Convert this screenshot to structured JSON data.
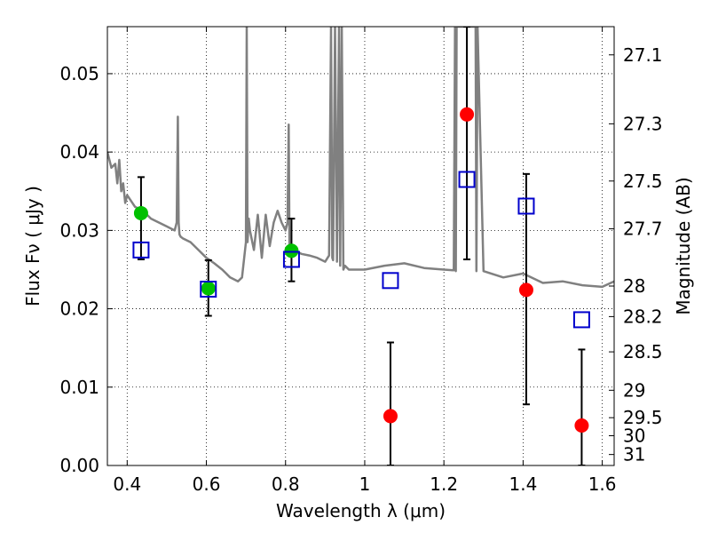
{
  "chart_data": {
    "type": "scatter",
    "xlabel": "Wavelength  λ (μm)",
    "ylabel": "Flux  Fν  ( μJy )",
    "y2label": "Magnitude (AB)",
    "xlim": [
      0.35,
      1.63
    ],
    "ylim": [
      0.0,
      0.056
    ],
    "grid": true,
    "x_ticks": [
      0.4,
      0.6,
      0.8,
      1.0,
      1.2,
      1.4,
      1.6
    ],
    "x_tick_labels": [
      "0.4",
      "0.6",
      "0.8",
      "1",
      "1.2",
      "1.4",
      "1.6"
    ],
    "y_ticks": [
      0.0,
      0.01,
      0.02,
      0.03,
      0.04,
      0.05
    ],
    "y_tick_labels": [
      "0.00",
      "0.01",
      "0.02",
      "0.03",
      "0.04",
      "0.05"
    ],
    "y2_ticks": [
      {
        "label": "27.1",
        "flux": 0.0524
      },
      {
        "label": "27.3",
        "flux": 0.0436
      },
      {
        "label": "27.5",
        "flux": 0.0363
      },
      {
        "label": "27.7",
        "flux": 0.0302
      },
      {
        "label": "28",
        "flux": 0.0229
      },
      {
        "label": "28.2",
        "flux": 0.019
      },
      {
        "label": "28.5",
        "flux": 0.0145
      },
      {
        "label": "29",
        "flux": 0.0096
      },
      {
        "label": "29.5",
        "flux": 0.0061
      },
      {
        "label": "30",
        "flux": 0.0038
      },
      {
        "label": "31",
        "flux": 0.0014
      }
    ],
    "series": [
      {
        "kind": "line",
        "color": "#808080",
        "x": [
          0.35,
          0.36,
          0.37,
          0.375,
          0.38,
          0.385,
          0.39,
          0.395,
          0.4,
          0.42,
          0.44,
          0.46,
          0.48,
          0.5,
          0.52,
          0.525,
          0.528,
          0.53,
          0.532,
          0.535,
          0.54,
          0.56,
          0.58,
          0.6,
          0.62,
          0.64,
          0.66,
          0.68,
          0.69,
          0.7,
          0.702,
          0.704,
          0.707,
          0.71,
          0.72,
          0.73,
          0.74,
          0.75,
          0.76,
          0.77,
          0.78,
          0.79,
          0.8,
          0.805,
          0.808,
          0.81,
          0.82,
          0.84,
          0.86,
          0.88,
          0.9,
          0.91,
          0.915,
          0.918,
          0.92,
          0.925,
          0.93,
          0.935,
          0.938,
          0.942,
          0.946,
          0.95,
          0.96,
          0.98,
          1.0,
          1.05,
          1.1,
          1.15,
          1.2,
          1.225,
          1.228,
          1.23,
          1.232,
          1.26,
          1.28,
          1.282,
          1.285,
          1.3,
          1.35,
          1.4,
          1.45,
          1.5,
          1.55,
          1.6,
          1.63
        ],
        "y": [
          0.04,
          0.038,
          0.0385,
          0.036,
          0.039,
          0.035,
          0.036,
          0.0335,
          0.0345,
          0.033,
          0.0325,
          0.0315,
          0.031,
          0.0305,
          0.03,
          0.031,
          0.0445,
          0.031,
          0.0295,
          0.0292,
          0.029,
          0.0285,
          0.0275,
          0.0265,
          0.0258,
          0.025,
          0.024,
          0.0235,
          0.024,
          0.0285,
          0.056,
          0.0285,
          0.0315,
          0.03,
          0.0275,
          0.032,
          0.0265,
          0.032,
          0.028,
          0.031,
          0.0325,
          0.031,
          0.03,
          0.031,
          0.0435,
          0.0275,
          0.0275,
          0.027,
          0.0268,
          0.0265,
          0.026,
          0.0268,
          0.056,
          0.0265,
          0.0262,
          0.056,
          0.026,
          0.056,
          0.0255,
          0.056,
          0.025,
          0.0255,
          0.025,
          0.025,
          0.025,
          0.0255,
          0.0258,
          0.0252,
          0.025,
          0.0249,
          0.056,
          0.0248,
          0.056,
          0.056,
          0.056,
          0.0248,
          0.056,
          0.0248,
          0.024,
          0.0245,
          0.0233,
          0.0235,
          0.023,
          0.0228,
          0.0235
        ]
      },
      {
        "kind": "markers",
        "marker": "circle",
        "color": "#00c000",
        "x": [
          0.435,
          0.605,
          0.815
        ],
        "y": [
          0.0322,
          0.0226,
          0.0274
        ],
        "err_low": [
          0.0059,
          0.0035,
          0.0039
        ],
        "err_high": [
          0.0046,
          0.0036,
          0.0041
        ]
      },
      {
        "kind": "markers",
        "marker": "circle",
        "color": "#ff0000",
        "x": [
          1.065,
          1.258,
          1.408,
          1.548
        ],
        "y": [
          0.0063,
          0.0448,
          0.0224,
          0.0051
        ],
        "err_low": [
          0.0063,
          0.0185,
          0.0146,
          0.0051
        ],
        "err_high": [
          0.0094,
          0.0112,
          0.0148,
          0.0097
        ]
      },
      {
        "kind": "markers",
        "marker": "open-square",
        "color": "#0000cc",
        "x": [
          0.435,
          0.605,
          0.815,
          1.065,
          1.258,
          1.408,
          1.548
        ],
        "y": [
          0.0275,
          0.0225,
          0.0263,
          0.0236,
          0.0365,
          0.0331,
          0.0186
        ]
      }
    ]
  }
}
